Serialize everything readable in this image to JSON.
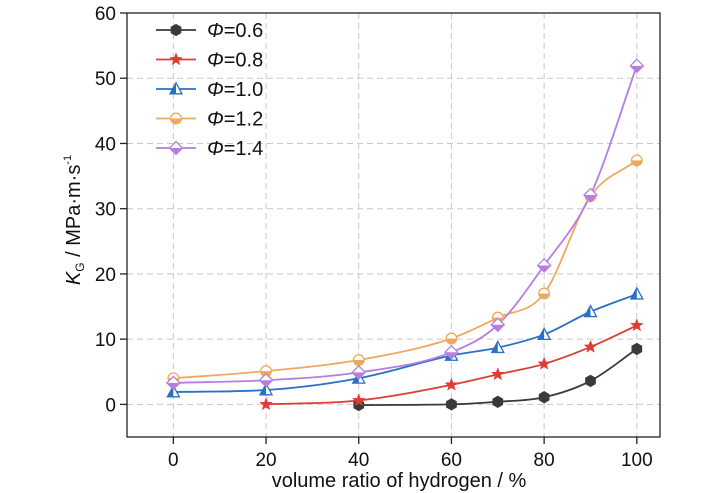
{
  "chart_data": {
    "type": "line",
    "xlabel": "volume ratio of hydrogen / %",
    "ylabel": {
      "symbol": "K",
      "subscript": "G",
      "unit": " / MPa·m·s",
      "superscript": "-1"
    },
    "xlim": [
      -10,
      105
    ],
    "ylim": [
      -5,
      60
    ],
    "xticks": [
      0,
      20,
      40,
      60,
      80,
      100
    ],
    "yticks": [
      0,
      10,
      20,
      30,
      40,
      50,
      60
    ],
    "grid": true,
    "legend_position": "top-left",
    "legend_symbol": "Φ",
    "series": [
      {
        "name": "=0.6",
        "color": "#3a3a3a",
        "marker": "hexagon",
        "x": [
          40,
          60,
          70,
          80,
          90,
          100
        ],
        "y": [
          -0.1,
          0.0,
          0.4,
          1.1,
          3.6,
          8.5
        ]
      },
      {
        "name": "=0.8",
        "color": "#e03c36",
        "marker": "star",
        "x": [
          20,
          40,
          60,
          70,
          80,
          90,
          100
        ],
        "y": [
          0.0,
          0.6,
          3.0,
          4.6,
          6.2,
          8.8,
          12.1
        ]
      },
      {
        "name": "=1.0",
        "color": "#2a71c4",
        "marker": "triangle",
        "x": [
          0,
          20,
          40,
          60,
          70,
          80,
          90,
          100
        ],
        "y": [
          1.9,
          2.2,
          4.0,
          7.5,
          8.7,
          10.7,
          14.2,
          16.9
        ]
      },
      {
        "name": "=1.2",
        "color": "#f0a860",
        "marker": "circle",
        "x": [
          0,
          20,
          40,
          60,
          70,
          80,
          90,
          100
        ],
        "y": [
          4.0,
          5.1,
          6.8,
          10.1,
          13.3,
          17.0,
          31.9,
          37.4
        ]
      },
      {
        "name": "=1.4",
        "color": "#b57ee0",
        "marker": "diamond",
        "x": [
          0,
          20,
          40,
          60,
          70,
          80,
          90,
          100
        ],
        "y": [
          3.3,
          3.7,
          4.9,
          8.0,
          12.2,
          21.3,
          32.1,
          51.9
        ]
      }
    ]
  }
}
